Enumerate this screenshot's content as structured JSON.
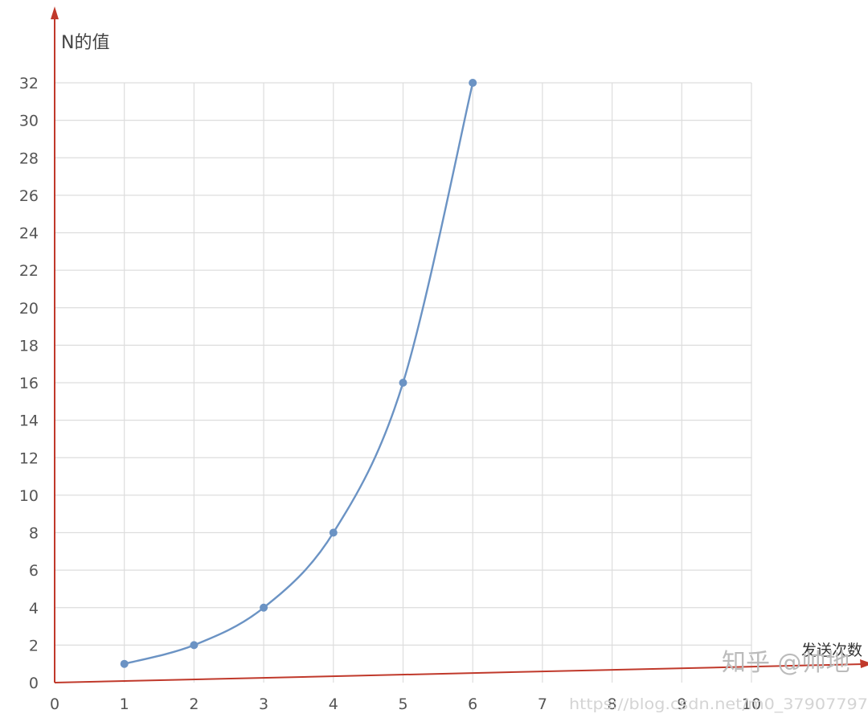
{
  "chart_data": {
    "type": "line",
    "title": "",
    "xlabel": "发送次数",
    "ylabel": "N的值",
    "xlim": [
      0,
      10
    ],
    "ylim": [
      0,
      32
    ],
    "x_ticks": [
      "0",
      "1",
      "2",
      "3",
      "4",
      "5",
      "6",
      "7",
      "8",
      "9",
      "10"
    ],
    "y_ticks": [
      "0",
      "2",
      "4",
      "6",
      "8",
      "10",
      "12",
      "14",
      "16",
      "18",
      "20",
      "22",
      "24",
      "26",
      "28",
      "30",
      "32"
    ],
    "grid": true,
    "smooth": true,
    "series": [
      {
        "x": [
          1,
          2,
          3,
          4,
          5,
          6
        ],
        "values": [
          1,
          2,
          4,
          8,
          16,
          32
        ]
      }
    ]
  },
  "colors": {
    "axis": "#c0392b",
    "grid": "#dddddd",
    "line": "#6b93c4",
    "marker": "#6b93c4"
  },
  "watermark": {
    "brand": "知乎 @帅地",
    "url": "https://blog.csdn.net/m0_37907797"
  }
}
